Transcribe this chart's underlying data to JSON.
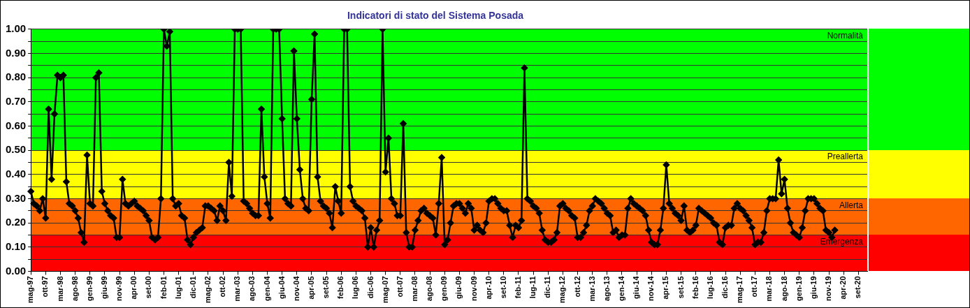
{
  "chart_data": {
    "type": "line",
    "title": "Indicatori di stato del Sistema Posada",
    "categories": [
      "mag-97",
      null,
      null,
      null,
      null,
      "ott-97",
      null,
      null,
      null,
      null,
      "mar-98",
      null,
      null,
      null,
      null,
      "ago-98",
      null,
      null,
      null,
      null,
      "gen-99",
      null,
      null,
      null,
      null,
      "giu-99",
      null,
      null,
      null,
      null,
      "nov-99",
      null,
      null,
      null,
      null,
      "apr-00",
      null,
      null,
      null,
      null,
      "set-00",
      null,
      null,
      null,
      null,
      "feb-01",
      null,
      null,
      null,
      null,
      "lug-01",
      null,
      null,
      null,
      null,
      "dic-01",
      null,
      null,
      null,
      null,
      "mag-02",
      null,
      null,
      null,
      null,
      "ott-02",
      null,
      null,
      null,
      null,
      "mar-03",
      null,
      null,
      null,
      null,
      "ago-03",
      null,
      null,
      null,
      null,
      "gen-04",
      null,
      null,
      null,
      null,
      "giu-04",
      null,
      null,
      null,
      null,
      "nov-04",
      null,
      null,
      null,
      null,
      "apr-05",
      null,
      null,
      null,
      null,
      "set-05",
      null,
      null,
      null,
      null,
      "feb-06",
      null,
      null,
      null,
      null,
      "lug-06",
      null,
      null,
      null,
      null,
      "dic-06",
      null,
      null,
      null,
      null,
      "mag-07",
      null,
      null,
      null,
      null,
      "ott-07",
      null,
      null,
      null,
      null,
      "mar-08",
      null,
      null,
      null,
      null,
      "ago-08",
      null,
      null,
      null,
      null,
      "gen-09",
      null,
      null,
      null,
      null,
      "giu-09",
      null,
      null,
      null,
      null,
      "nov-09",
      null,
      null,
      null,
      null,
      "apr-10",
      null,
      null,
      null,
      null,
      "set-10",
      null,
      null,
      null,
      null,
      "feb-11",
      null,
      null,
      null,
      null,
      "lug-11",
      null,
      null,
      null,
      null,
      "dic-11",
      null,
      null,
      null,
      null,
      "mag-12",
      null,
      null,
      null,
      null,
      "ott-12",
      null,
      null,
      null,
      null,
      "mar-13",
      null,
      null,
      null,
      null,
      "ago-13",
      null,
      null,
      null,
      null,
      "gen-14",
      null,
      null,
      null,
      null,
      "giu-14",
      null,
      null,
      null,
      null,
      "nov-14",
      null,
      null,
      null,
      null,
      "apr-15",
      null,
      null,
      null,
      null,
      "set-15",
      null,
      null,
      null,
      null,
      "feb-16",
      null,
      null,
      null,
      null,
      "lug-16",
      null,
      null,
      null,
      null,
      "dic-16",
      null,
      null,
      null,
      null,
      "mag-17",
      null,
      null,
      null,
      null,
      "ott-17",
      null,
      null,
      null,
      null,
      "mar-18",
      null,
      null,
      null,
      null,
      "ago-18",
      null,
      null,
      null,
      null,
      "gen-19",
      null,
      null,
      null,
      null,
      "giu-19",
      null,
      null,
      null,
      null,
      "nov-19",
      null,
      null,
      null,
      null,
      "apr-20",
      null,
      null,
      null,
      null,
      "set-20",
      null,
      null,
      null
    ],
    "series": [
      {
        "color": "#000000",
        "values": [
          0.33,
          0.28,
          0.27,
          0.25,
          0.3,
          0.22,
          0.67,
          0.38,
          0.65,
          0.81,
          0.8,
          0.81,
          0.37,
          0.28,
          0.27,
          0.25,
          0.22,
          0.16,
          0.12,
          0.48,
          0.28,
          0.27,
          0.8,
          0.82,
          0.33,
          0.28,
          0.25,
          0.23,
          0.22,
          0.14,
          0.14,
          0.38,
          0.28,
          0.27,
          0.28,
          0.29,
          0.27,
          0.26,
          0.25,
          0.23,
          0.21,
          0.14,
          0.13,
          0.14,
          0.3,
          1.0,
          0.93,
          0.99,
          0.3,
          0.27,
          0.28,
          0.23,
          0.22,
          0.13,
          0.11,
          0.14,
          0.16,
          0.17,
          0.18,
          0.27,
          0.27,
          0.26,
          0.25,
          0.21,
          0.27,
          0.25,
          0.21,
          0.45,
          0.31,
          1.0,
          1.0,
          1.0,
          0.29,
          0.28,
          0.26,
          0.24,
          0.23,
          0.23,
          0.67,
          0.39,
          0.28,
          0.22,
          1.0,
          1.0,
          1.0,
          0.63,
          0.3,
          0.28,
          0.27,
          0.91,
          0.63,
          0.42,
          0.3,
          0.26,
          0.25,
          0.71,
          0.98,
          0.39,
          0.29,
          0.27,
          0.26,
          0.24,
          0.18,
          0.35,
          0.29,
          0.24,
          1.0,
          1.0,
          0.35,
          0.29,
          0.27,
          0.26,
          0.25,
          0.22,
          0.1,
          0.18,
          0.1,
          0.17,
          0.21,
          1.0,
          0.41,
          0.55,
          0.3,
          0.28,
          0.23,
          0.23,
          0.61,
          0.16,
          0.1,
          0.1,
          0.17,
          0.21,
          0.25,
          0.26,
          0.24,
          0.23,
          0.22,
          0.15,
          0.28,
          0.47,
          0.11,
          0.13,
          0.2,
          0.27,
          0.28,
          0.28,
          0.26,
          0.24,
          0.28,
          0.26,
          0.17,
          0.19,
          0.17,
          0.16,
          0.2,
          0.29,
          0.3,
          0.3,
          0.28,
          0.26,
          0.25,
          0.25,
          0.19,
          0.14,
          0.19,
          0.18,
          0.21,
          0.84,
          0.3,
          0.29,
          0.27,
          0.26,
          0.24,
          0.17,
          0.13,
          0.12,
          0.12,
          0.13,
          0.16,
          0.27,
          0.28,
          0.26,
          0.25,
          0.23,
          0.22,
          0.14,
          0.14,
          0.16,
          0.19,
          0.25,
          0.27,
          0.3,
          0.29,
          0.28,
          0.26,
          0.24,
          0.23,
          0.16,
          0.17,
          0.14,
          0.15,
          0.15,
          0.26,
          0.3,
          0.28,
          0.27,
          0.26,
          0.25,
          0.23,
          0.17,
          0.12,
          0.11,
          0.11,
          0.17,
          0.26,
          0.44,
          0.28,
          0.26,
          0.24,
          0.23,
          0.21,
          0.27,
          0.17,
          0.16,
          0.17,
          0.19,
          0.26,
          0.25,
          0.24,
          0.23,
          0.22,
          0.2,
          0.19,
          0.12,
          0.11,
          0.18,
          0.19,
          0.19,
          0.26,
          0.28,
          0.26,
          0.25,
          0.23,
          0.21,
          0.18,
          0.11,
          0.12,
          0.12,
          0.16,
          0.25,
          0.3,
          0.3,
          0.3,
          0.46,
          0.32,
          0.38,
          0.26,
          0.2,
          0.16,
          0.15,
          0.14,
          0.18,
          0.25,
          0.3,
          0.3,
          0.3,
          0.28,
          0.26,
          0.25,
          0.17,
          0.16,
          0.14,
          0.17,
          null,
          null,
          null,
          null,
          null,
          null,
          null,
          null,
          null,
          null,
          null
        ]
      }
    ],
    "ylim": [
      0,
      1
    ],
    "yticks": [
      {
        "value": 0,
        "label": "0.00"
      },
      {
        "value": 0.05,
        "label": null
      },
      {
        "value": 0.1,
        "label": "0.10"
      },
      {
        "value": 0.15,
        "label": null
      },
      {
        "value": 0.2,
        "label": "0.20"
      },
      {
        "value": 0.25,
        "label": null
      },
      {
        "value": 0.3,
        "label": "0.30"
      },
      {
        "value": 0.35,
        "label": null
      },
      {
        "value": 0.4,
        "label": "0.40"
      },
      {
        "value": 0.45,
        "label": null
      },
      {
        "value": 0.5,
        "label": "0.50"
      },
      {
        "value": 0.55,
        "label": null
      },
      {
        "value": 0.6,
        "label": "0.60"
      },
      {
        "value": 0.65,
        "label": null
      },
      {
        "value": 0.7,
        "label": "0.70"
      },
      {
        "value": 0.75,
        "label": null
      },
      {
        "value": 0.8,
        "label": "0.80"
      },
      {
        "value": 0.85,
        "label": null
      },
      {
        "value": 0.9,
        "label": "0.90"
      },
      {
        "value": 0.95,
        "label": null
      },
      {
        "value": 1,
        "label": "1.00"
      }
    ],
    "bands": [
      {
        "axis": "y",
        "from": 0,
        "to": 0.15,
        "label": "Emergenza",
        "color": "#ff0000"
      },
      {
        "axis": "y",
        "from": 0.15,
        "to": 0.3,
        "label": "Allerta",
        "color": "#ff6600"
      },
      {
        "axis": "y",
        "from": 0.3,
        "to": 0.5,
        "label": "Preallerta",
        "color": "#ffff00"
      },
      {
        "axis": "y",
        "from": 0.5,
        "to": 1,
        "label": "Normalità",
        "color": "#00ff00"
      }
    ],
    "grid": "y",
    "legend": false,
    "marker": "diamond",
    "line_style": "solid"
  }
}
